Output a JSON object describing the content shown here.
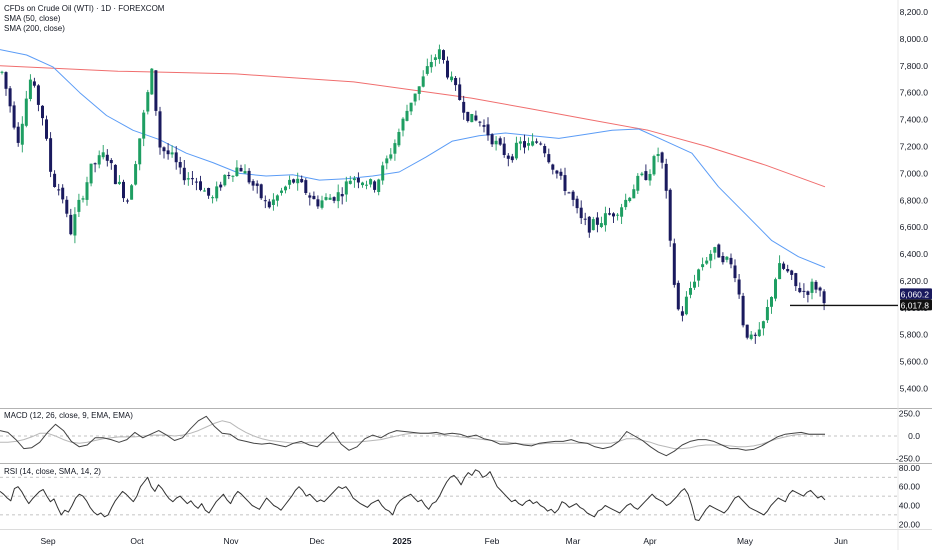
{
  "legend": {
    "title": "CFDs on Crude Oil (WTI) · 1D · FOREXCOM",
    "sma50": "SMA (50, close)",
    "sma200": "SMA (200, close)",
    "macd": "MACD (12, 26, close, 9, EMA, EMA)",
    "rsi": "RSI (14, close, SMA, 14, 2)"
  },
  "colors": {
    "up": "#26a69a",
    "up_fill": "#1e9e62",
    "down": "#1a1a5e",
    "sma50": "#5b9cf6",
    "sma200": "#f06e6e",
    "macd": "#444444",
    "signal": "#b8b8b8",
    "rsi": "#333333",
    "price_badge": "#1a1a5e",
    "grid_dash": "#b0b0b0"
  },
  "chart_data": [
    {
      "type": "candlestick",
      "title": "CFDs on Crude Oil (WTI) · 1D · FOREXCOM",
      "ylim": [
        5200,
        8300
      ],
      "y_ticks": [
        "8,200.0",
        "8,000.0",
        "7,800.0",
        "7,600.0",
        "7,400.0",
        "7,200.0",
        "7,000.0",
        "6,800.0",
        "6,600.0",
        "6,400.0",
        "6,200.0",
        "6,000.0",
        "5,800.0",
        "5,600.0",
        "5,400.0"
      ],
      "x_ticks": [
        "Sep",
        "Oct",
        "Nov",
        "Dec",
        "2025",
        "Feb",
        "Mar",
        "Apr",
        "May",
        "Jun"
      ],
      "price_labels": [
        "6,060.2",
        "6,017.8"
      ],
      "horizontal_line": 6017.8,
      "series": [
        {
          "name": "SMA (50, close)",
          "values": [
            7920,
            7880,
            7790,
            7600,
            7430,
            7320,
            7250,
            7150,
            7080,
            7000,
            6980,
            6990,
            6950,
            6960,
            6980,
            7010,
            7120,
            7240,
            7280,
            7300,
            7280,
            7260,
            7290,
            7320,
            7330,
            7240,
            7150,
            6900,
            6700,
            6500,
            6380,
            6300
          ]
        },
        {
          "name": "SMA (200, close)",
          "values": [
            7800,
            7780,
            7760,
            7750,
            7740,
            7710,
            7680,
            7620,
            7560,
            7480,
            7400,
            7320,
            7200,
            7060,
            6900
          ]
        }
      ]
    },
    {
      "type": "line",
      "title": "MACD (12, 26, close, 9, EMA, EMA)",
      "ylim": [
        -290,
        290
      ],
      "y_ticks": [
        "250.0",
        "0.0",
        "-250.0"
      ],
      "series": [
        {
          "name": "MACD",
          "values": [
            60,
            40,
            -40,
            -140,
            -130,
            -70,
            40,
            130,
            60,
            -60,
            -120,
            -100,
            -20,
            -20,
            -40,
            -70,
            -40,
            40,
            -20,
            20,
            60,
            10,
            -50,
            -20,
            80,
            170,
            220,
            110,
            30,
            20,
            -40,
            -60,
            -80,
            -90,
            -80,
            -100,
            -120,
            -80,
            -60,
            -100,
            -120,
            -40,
            40,
            -90,
            -160,
            -120,
            -30,
            10,
            -20,
            30,
            60,
            50,
            40,
            30,
            30,
            40,
            20,
            30,
            20,
            -10,
            10,
            -30,
            -50,
            -90,
            -90,
            -80,
            -100,
            -110,
            -80,
            -70,
            -60,
            -60,
            -40,
            -70,
            -80,
            -120,
            -140,
            -120,
            -60,
            50,
            0,
            -50,
            -120,
            -180,
            -220,
            -170,
            -100,
            -60,
            -40,
            -40,
            -60,
            -100,
            -140,
            -140,
            -160,
            -150,
            -110,
            -60,
            -10,
            20,
            30,
            40,
            20,
            20,
            20
          ]
        },
        {
          "name": "Signal",
          "values": [
            -70,
            -70,
            -60,
            -40,
            -10,
            30,
            30,
            0,
            -40,
            -70,
            -80,
            -70,
            -50,
            -30,
            -20,
            -10,
            -10,
            -10,
            0,
            10,
            10,
            10,
            0,
            10,
            30,
            60,
            100,
            140,
            170,
            150,
            90,
            40,
            0,
            -30,
            -50,
            -60,
            -70,
            -80,
            -80,
            -70,
            -70,
            -70,
            -70,
            -70,
            -70,
            -70,
            -60,
            -50,
            -40,
            -20,
            0,
            20,
            30,
            30,
            30,
            20,
            10,
            0,
            -10,
            -20,
            -30,
            -40,
            -50,
            -60,
            -70,
            -80,
            -90,
            -90,
            -90,
            -80,
            -80,
            -80,
            -80,
            -80,
            -80,
            -80,
            -80,
            -80,
            -60,
            -30,
            -30,
            -50,
            -70,
            -100,
            -120,
            -140,
            -140,
            -130,
            -110,
            -100,
            -100,
            -100,
            -110,
            -120,
            -120,
            -110,
            -90,
            -60,
            -30,
            -10,
            10,
            20,
            20,
            20,
            20
          ]
        }
      ]
    },
    {
      "type": "line",
      "title": "RSI (14, close, SMA, 14, 2)",
      "ylim": [
        15,
        82
      ],
      "y_ticks": [
        "80.00",
        "60.00",
        "40.00",
        "20.00"
      ],
      "series": [
        {
          "name": "RSI",
          "values": [
            55,
            52,
            48,
            45,
            58,
            60,
            55,
            48,
            42,
            47,
            51,
            55,
            57,
            50,
            44,
            47,
            38,
            30,
            35,
            33,
            40,
            48,
            52,
            50,
            45,
            38,
            33,
            30,
            32,
            28,
            30,
            38,
            45,
            50,
            55,
            52,
            48,
            44,
            50,
            60,
            65,
            70,
            60,
            55,
            62,
            58,
            52,
            47,
            44,
            48,
            50,
            46,
            42,
            45,
            40,
            37,
            42,
            35,
            32,
            38,
            44,
            48,
            52,
            46,
            42,
            50,
            55,
            52,
            48,
            44,
            40,
            38,
            36,
            42,
            48,
            44,
            40,
            38,
            35,
            40,
            45,
            50,
            56,
            60,
            56,
            50,
            52,
            48,
            44,
            46,
            44,
            48,
            52,
            56,
            60,
            58,
            60,
            55,
            48,
            45,
            42,
            40,
            38,
            42,
            44,
            46,
            40,
            36,
            34,
            30,
            40,
            45,
            48,
            50,
            52,
            48,
            44,
            46,
            40,
            36,
            42,
            44,
            50,
            58,
            65,
            70,
            72,
            68,
            62,
            70,
            75,
            72,
            78,
            76,
            70,
            72,
            76,
            68,
            60,
            56,
            52,
            48,
            44,
            46,
            42,
            40,
            44,
            46,
            42,
            44,
            40,
            38,
            34,
            36,
            32,
            36,
            44,
            42,
            38,
            40,
            42,
            38,
            36,
            32,
            30,
            28,
            34,
            36,
            40,
            38,
            36,
            34,
            32,
            36,
            40,
            42,
            38,
            36,
            40,
            44,
            48,
            52,
            48,
            46,
            44,
            40,
            42,
            46,
            50,
            55,
            58,
            52,
            40,
            25,
            24,
            30,
            36,
            40,
            38,
            36,
            34,
            32,
            36,
            42,
            48,
            50,
            46,
            42,
            38,
            36,
            34,
            32,
            30,
            34,
            40,
            44,
            48,
            46,
            44,
            52,
            56,
            54,
            52,
            50,
            54,
            56,
            52,
            48,
            50,
            46
          ]
        }
      ]
    }
  ]
}
